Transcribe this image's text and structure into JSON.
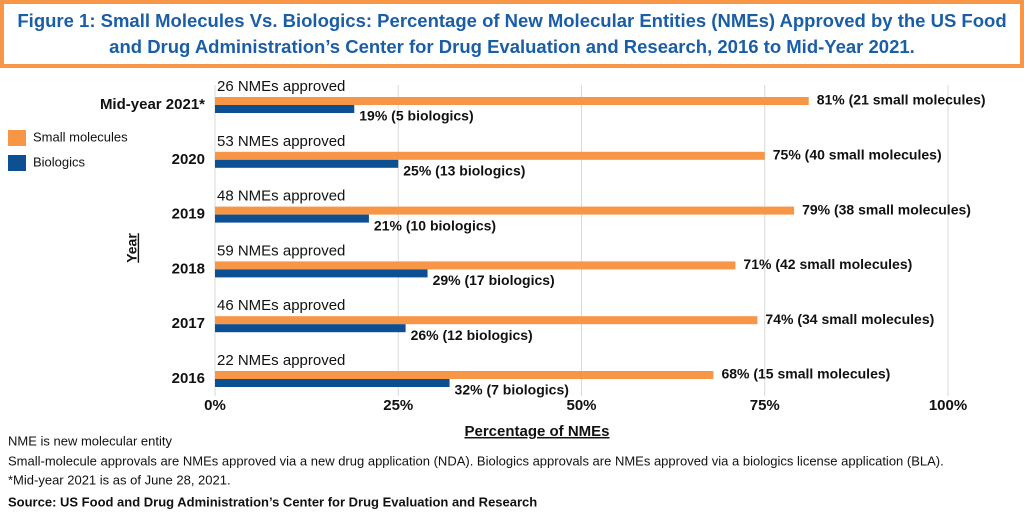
{
  "chart_data": {
    "type": "bar",
    "orientation": "horizontal",
    "title": "Figure 1: Small Molecules Vs. Biologics: Percentage of New Molecular Entities (NMEs) Approved by the US Food and Drug Administration’s Center for Drug Evaluation and Research, 2016 to Mid-Year 2021.",
    "categories": [
      "Mid-year 2021*",
      "2020",
      "2019",
      "2018",
      "2017",
      "2016"
    ],
    "annotations": [
      "26 NMEs approved",
      "53 NMEs approved",
      "48 NMEs approved",
      "59 NMEs approved",
      "46 NMEs approved",
      "22 NMEs approved"
    ],
    "series": [
      {
        "name": "Small molecules",
        "color": "#f79646",
        "values": [
          81,
          75,
          79,
          71,
          74,
          68
        ],
        "value_labels": [
          "81% (21 small molecules)",
          "75% (40 small molecules)",
          "79% (38 small molecules)",
          "71% (42 small molecules)",
          "74% (34 small molecules)",
          "68% (15 small molecules)"
        ]
      },
      {
        "name": "Biologics",
        "color": "#0d4f93",
        "values": [
          19,
          25,
          21,
          29,
          26,
          32
        ],
        "value_labels": [
          "19% (5 biologics)",
          "25% (13 biologics)",
          "21% (10 biologics)",
          "29% (17 biologics)",
          "26% (12 biologics)",
          "32% (7 biologics)"
        ]
      }
    ],
    "xlim": [
      0,
      100
    ],
    "xticks": [
      {
        "value": 0,
        "label": "0%"
      },
      {
        "value": 25,
        "label": "25%"
      },
      {
        "value": 50,
        "label": "50%"
      },
      {
        "value": 75,
        "label": "75%"
      },
      {
        "value": 100,
        "label": "100%"
      }
    ],
    "xlabel": "Percentage of NMEs",
    "ylabel": "Year",
    "grid": true,
    "legend": "left"
  },
  "notes": [
    "NME is new molecular entity",
    "Small-molecule approvals are NMEs approved via a new drug application (NDA).  Biologics approvals are NMEs approved via a biologics license application (BLA).",
    "*Mid-year 2021 is as of June 28, 2021."
  ],
  "source": "Source: US Food and Drug Administration’s Center for Drug Evaluation and Research"
}
